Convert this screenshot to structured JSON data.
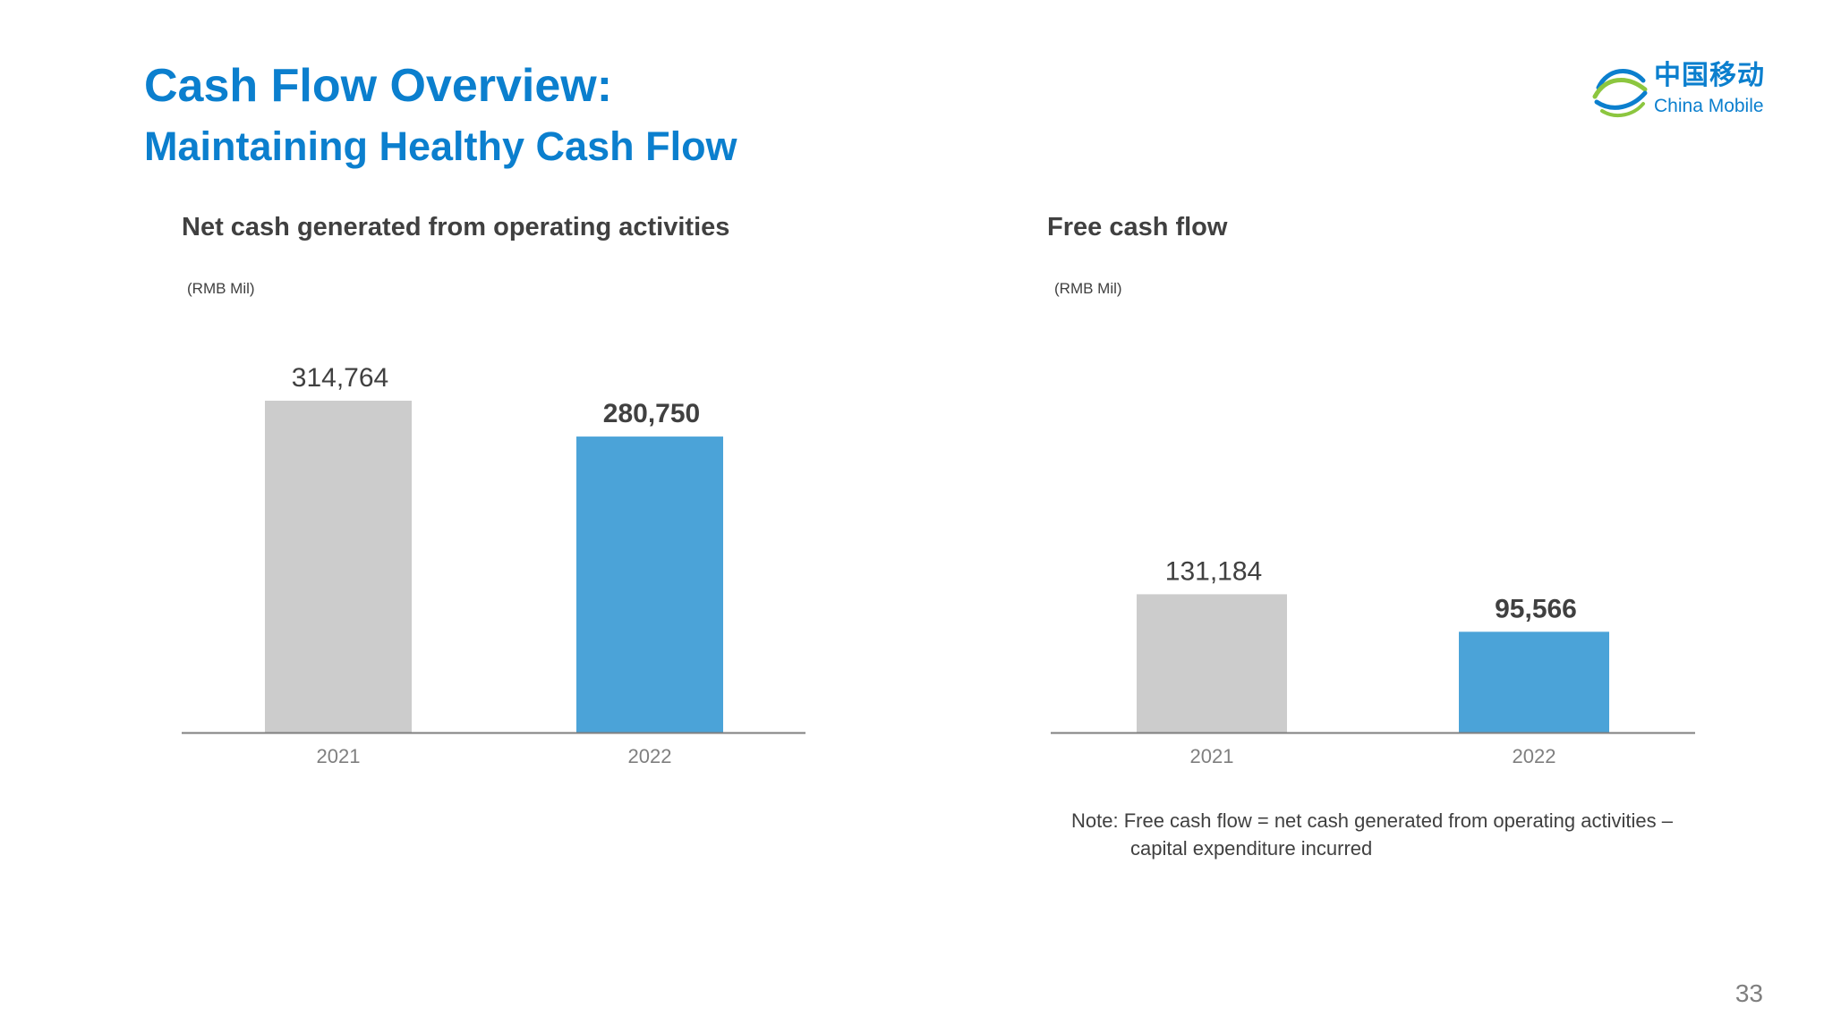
{
  "header": {
    "title_line1": "Cash Flow Overview:",
    "title_line2": "Maintaining Healthy Cash Flow"
  },
  "logo": {
    "icon": "china-mobile-logo-icon",
    "chinese_name": "中国移动",
    "english_name": "China Mobile"
  },
  "colors": {
    "title": "#0b7fce",
    "bar_2021": "#cccccc",
    "bar_2022": "#4ba3d8",
    "text": "#404040",
    "axis": "#7f7f7f"
  },
  "chart_data": [
    {
      "type": "bar",
      "title": "Net cash generated from operating activities",
      "unit": "(RMB Mil)",
      "categories": [
        "2021",
        "2022"
      ],
      "values": [
        314764,
        280750
      ],
      "value_labels": [
        "314,764",
        "280,750"
      ],
      "highlight_index": 1,
      "ylim": [
        0,
        314764
      ]
    },
    {
      "type": "bar",
      "title": "Free cash flow",
      "unit": "(RMB Mil)",
      "categories": [
        "2021",
        "2022"
      ],
      "values": [
        131184,
        95566
      ],
      "value_labels": [
        "131,184",
        "95,566"
      ],
      "highlight_index": 1,
      "ylim": [
        0,
        314764
      ]
    }
  ],
  "note": "Note: Free cash flow = net cash generated from operating activities – capital expenditure incurred",
  "page_number": "33"
}
